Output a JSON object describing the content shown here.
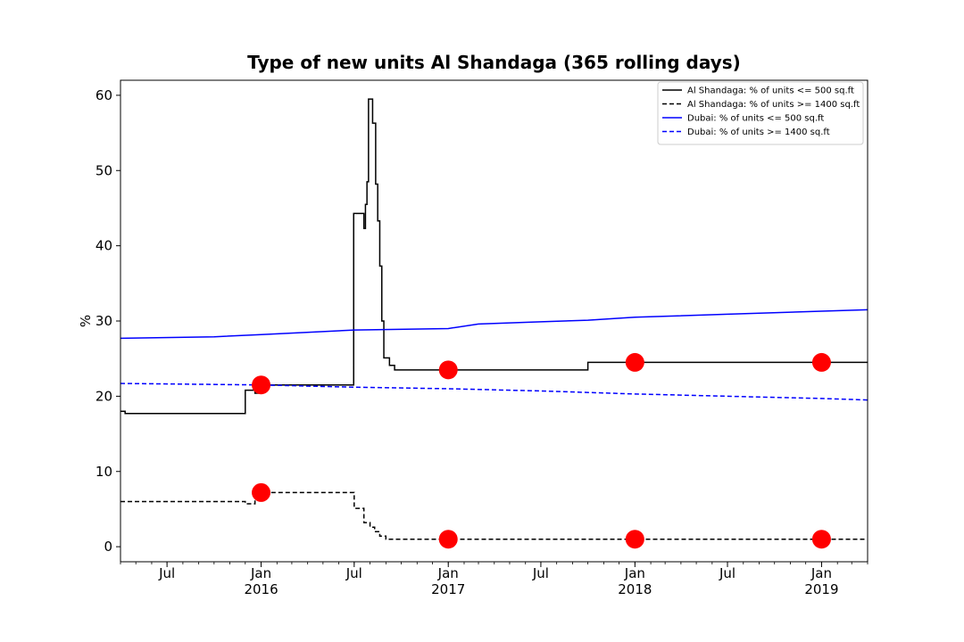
{
  "chart_data": {
    "type": "line",
    "title": "Type of new units Al Shandaga (365 rolling days)",
    "xlabel": "",
    "ylabel": "%",
    "ylim": [
      -2,
      62
    ],
    "yticks": [
      0,
      10,
      20,
      30,
      40,
      50,
      60
    ],
    "xlim": [
      "2015-04-01",
      "2019-04-01"
    ],
    "xticks": [
      {
        "date": "2015-07-01",
        "label": "Jul",
        "sublabel": ""
      },
      {
        "date": "2016-01-01",
        "label": "Jan",
        "sublabel": "2016"
      },
      {
        "date": "2016-07-01",
        "label": "Jul",
        "sublabel": ""
      },
      {
        "date": "2017-01-01",
        "label": "Jan",
        "sublabel": "2017"
      },
      {
        "date": "2017-07-01",
        "label": "Jul",
        "sublabel": ""
      },
      {
        "date": "2018-01-01",
        "label": "Jan",
        "sublabel": "2018"
      },
      {
        "date": "2018-07-01",
        "label": "Jul",
        "sublabel": ""
      },
      {
        "date": "2019-01-01",
        "label": "Jan",
        "sublabel": "2019"
      }
    ],
    "legend_position": "top-right",
    "series": [
      {
        "name": "Al Shandaga: % of units <= 500 sq.ft",
        "color": "#000000",
        "dash": "solid",
        "step": true,
        "points": [
          [
            "2015-04-01",
            18.0
          ],
          [
            "2015-04-10",
            17.7
          ],
          [
            "2015-12-01",
            20.8
          ],
          [
            "2015-12-20",
            20.4
          ],
          [
            "2016-01-01",
            21.5
          ],
          [
            "2016-06-30",
            44.3
          ],
          [
            "2016-07-20",
            42.3
          ],
          [
            "2016-07-23",
            45.5
          ],
          [
            "2016-07-26",
            48.5
          ],
          [
            "2016-07-29",
            59.5
          ],
          [
            "2016-08-06",
            56.3
          ],
          [
            "2016-08-12",
            48.2
          ],
          [
            "2016-08-16",
            43.3
          ],
          [
            "2016-08-20",
            37.3
          ],
          [
            "2016-08-24",
            30.0
          ],
          [
            "2016-08-28",
            25.1
          ],
          [
            "2016-09-08",
            24.1
          ],
          [
            "2016-09-18",
            23.5
          ],
          [
            "2017-10-01",
            24.5
          ],
          [
            "2019-04-01",
            24.5
          ]
        ]
      },
      {
        "name": "Al Shandaga: % of units >= 1400 sq.ft",
        "color": "#000000",
        "dash": "dashed",
        "step": true,
        "points": [
          [
            "2015-04-01",
            6.0
          ],
          [
            "2015-12-01",
            5.7
          ],
          [
            "2015-12-20",
            7.2
          ],
          [
            "2016-07-01",
            5.1
          ],
          [
            "2016-07-20",
            3.2
          ],
          [
            "2016-08-01",
            2.6
          ],
          [
            "2016-08-10",
            2.0
          ],
          [
            "2016-08-20",
            1.4
          ],
          [
            "2016-09-01",
            1.0
          ],
          [
            "2019-04-01",
            1.0
          ]
        ]
      },
      {
        "name": "Dubai: % of units <= 500 sq.ft",
        "color": "#0000ff",
        "dash": "solid",
        "step": false,
        "points": [
          [
            "2015-04-01",
            27.7
          ],
          [
            "2015-10-01",
            27.9
          ],
          [
            "2016-01-01",
            28.2
          ],
          [
            "2016-07-01",
            28.8
          ],
          [
            "2017-01-01",
            29.0
          ],
          [
            "2017-03-01",
            29.6
          ],
          [
            "2017-07-01",
            29.9
          ],
          [
            "2017-10-01",
            30.1
          ],
          [
            "2018-01-01",
            30.5
          ],
          [
            "2018-07-01",
            30.9
          ],
          [
            "2019-01-01",
            31.3
          ],
          [
            "2019-04-01",
            31.5
          ]
        ]
      },
      {
        "name": "Dubai: % of units >= 1400 sq.ft",
        "color": "#0000ff",
        "dash": "dashed",
        "step": false,
        "points": [
          [
            "2015-04-01",
            21.7
          ],
          [
            "2016-01-01",
            21.5
          ],
          [
            "2016-07-01",
            21.2
          ],
          [
            "2017-01-01",
            21.0
          ],
          [
            "2017-07-01",
            20.7
          ],
          [
            "2018-01-01",
            20.3
          ],
          [
            "2018-07-01",
            20.0
          ],
          [
            "2019-01-01",
            19.7
          ],
          [
            "2019-04-01",
            19.5
          ]
        ]
      }
    ],
    "markers": {
      "color": "#ff0000",
      "points": [
        [
          "2016-01-01",
          21.5
        ],
        [
          "2016-01-01",
          7.2
        ],
        [
          "2017-01-01",
          23.5
        ],
        [
          "2017-01-01",
          1.0
        ],
        [
          "2018-01-01",
          24.5
        ],
        [
          "2018-01-01",
          1.0
        ],
        [
          "2019-01-01",
          24.5
        ],
        [
          "2019-01-01",
          1.0
        ]
      ]
    }
  }
}
